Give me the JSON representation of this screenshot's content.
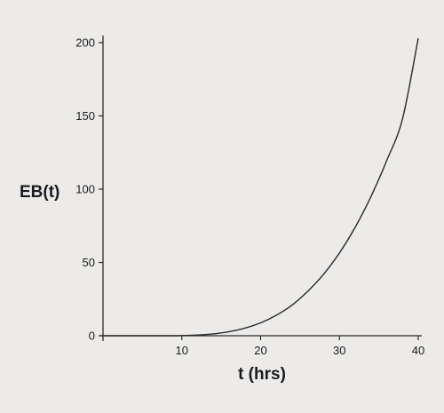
{
  "chart_data": {
    "type": "line",
    "title": "",
    "xlabel": "t (hrs)",
    "ylabel": "EB(t)",
    "xlim": [
      0,
      40
    ],
    "ylim": [
      0,
      200
    ],
    "xticks": [
      10,
      20,
      30,
      40
    ],
    "yticks": [
      0,
      50,
      100,
      150,
      200
    ],
    "xtick_labels": [
      "10",
      "20",
      "30",
      "40"
    ],
    "ytick_labels": [
      "0",
      "50",
      "100",
      "150",
      "200"
    ],
    "grid": false,
    "legend": "none",
    "line_color": "#2a2a2a",
    "series": [
      {
        "x": [
          0,
          8,
          10,
          12,
          14,
          16,
          18,
          20,
          22,
          24,
          26,
          28,
          30,
          32,
          34,
          36,
          38,
          40
        ],
        "y": [
          0,
          0,
          0.1,
          0.5,
          1.3,
          2.8,
          5.2,
          8.8,
          14,
          21,
          30.5,
          42,
          56.5,
          74,
          95,
          119.5,
          148,
          203
        ]
      }
    ]
  }
}
